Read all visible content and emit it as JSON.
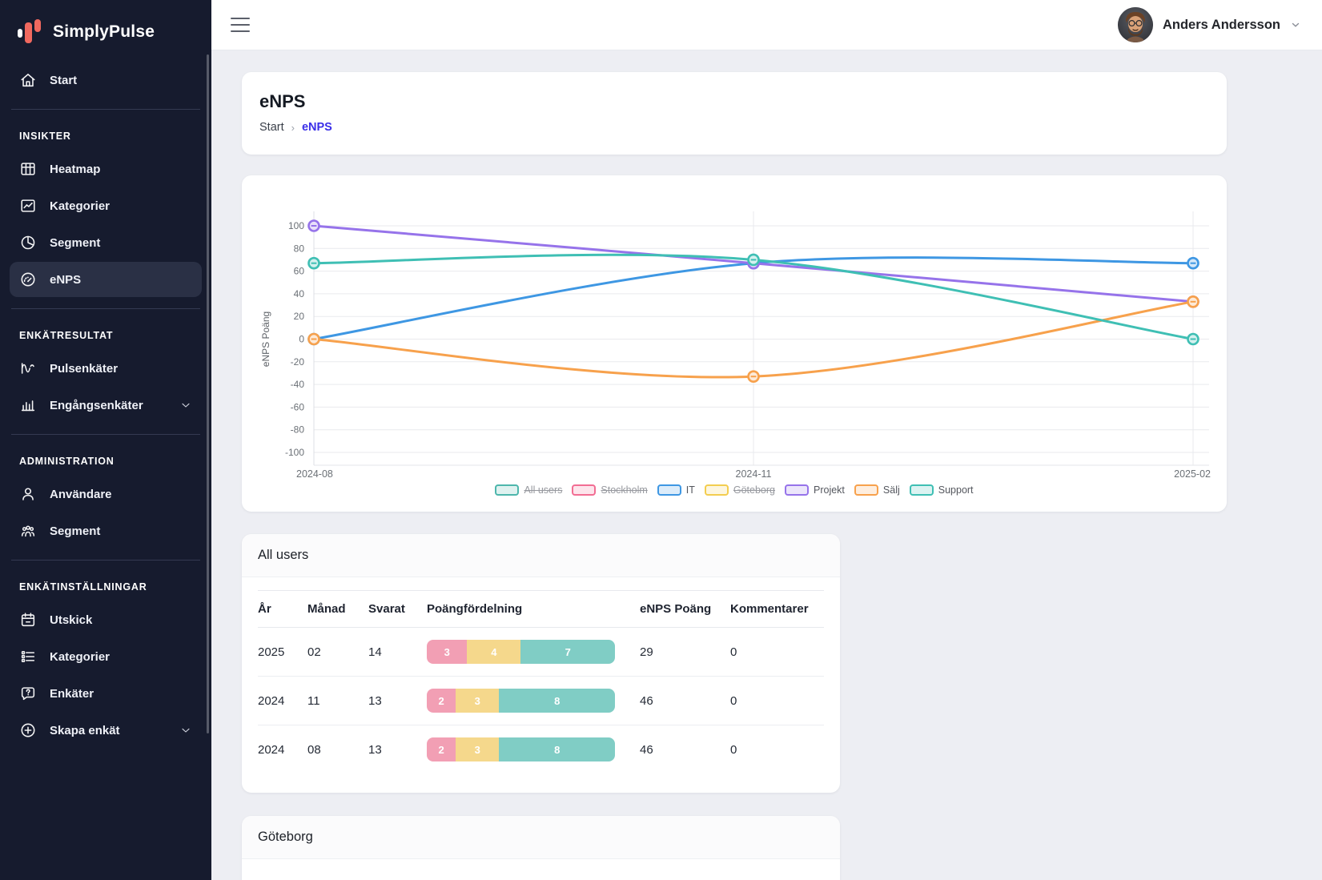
{
  "brand": {
    "name": "SimplyPulse",
    "accent": "#f1695f"
  },
  "topbar": {
    "user_name": "Anders Andersson"
  },
  "sidebar": {
    "sections": [
      {
        "header": null,
        "items": [
          {
            "label": "Start",
            "icon": "home"
          }
        ]
      },
      {
        "header": "INSIKTER",
        "items": [
          {
            "label": "Heatmap",
            "icon": "grid"
          },
          {
            "label": "Kategorier",
            "icon": "trend"
          },
          {
            "label": "Segment",
            "icon": "pie"
          },
          {
            "label": "eNPS",
            "icon": "gauge",
            "active": true
          }
        ]
      },
      {
        "header": "ENKÄTRESULTAT",
        "items": [
          {
            "label": "Pulsenkäter",
            "icon": "pulse"
          },
          {
            "label": "Engångsenkäter",
            "icon": "bars",
            "chevron": true
          }
        ]
      },
      {
        "header": "ADMINISTRATION",
        "items": [
          {
            "label": "Användare",
            "icon": "user"
          },
          {
            "label": "Segment",
            "icon": "people"
          }
        ]
      },
      {
        "header": "ENKÄTINSTÄLLNINGAR",
        "items": [
          {
            "label": "Utskick",
            "icon": "calendar"
          },
          {
            "label": "Kategorier",
            "icon": "list"
          },
          {
            "label": "Enkäter",
            "icon": "chat-question"
          },
          {
            "label": "Skapa enkät",
            "icon": "plus-circle",
            "chevron": true
          }
        ]
      }
    ]
  },
  "page": {
    "title": "eNPS",
    "breadcrumb": [
      "Start",
      "eNPS"
    ],
    "breadcrumb_separator": "›"
  },
  "chart_data": {
    "type": "line",
    "x": [
      "2024-08",
      "2024-11",
      "2025-02"
    ],
    "ylabel": "eNPS Poäng",
    "ylim": [
      -100,
      100
    ],
    "yticks": [
      100,
      80,
      60,
      40,
      20,
      0,
      -20,
      -40,
      -60,
      -80,
      -100
    ],
    "grid": true,
    "legend_position": "bottom",
    "series": [
      {
        "name": "All users",
        "color": "#4db6ac",
        "hidden": true,
        "values": null
      },
      {
        "name": "Stockholm",
        "color": "#f26d93",
        "hidden": true,
        "values": null
      },
      {
        "name": "IT",
        "color": "#3e97e3",
        "hidden": false,
        "values": [
          0,
          67,
          67
        ]
      },
      {
        "name": "Göteborg",
        "color": "#f3cd4f",
        "hidden": true,
        "values": null
      },
      {
        "name": "Projekt",
        "color": "#9673ea",
        "hidden": false,
        "values": [
          100,
          67,
          33
        ]
      },
      {
        "name": "Sälj",
        "color": "#f7a14c",
        "hidden": false,
        "values": [
          0,
          -33,
          33
        ]
      },
      {
        "name": "Support",
        "color": "#3fbfb4",
        "hidden": false,
        "values": [
          67,
          70,
          0
        ]
      }
    ]
  },
  "distribution_colors": {
    "detractors": "#f29fb4",
    "passives": "#f5d88c",
    "promoters": "#80cdc5"
  },
  "tables": [
    {
      "title": "All users",
      "columns": [
        "År",
        "Månad",
        "Svarat",
        "Poängfördelning",
        "eNPS Poäng",
        "Kommentarer"
      ],
      "rows": [
        {
          "ar": "2025",
          "manad": "02",
          "svarat": "14",
          "dist": [
            3,
            4,
            7
          ],
          "enps": "29",
          "kommentarer": "0"
        },
        {
          "ar": "2024",
          "manad": "11",
          "svarat": "13",
          "dist": [
            2,
            3,
            8
          ],
          "enps": "46",
          "kommentarer": "0"
        },
        {
          "ar": "2024",
          "manad": "08",
          "svarat": "13",
          "dist": [
            2,
            3,
            8
          ],
          "enps": "46",
          "kommentarer": "0"
        }
      ]
    },
    {
      "title": "Göteborg"
    }
  ]
}
